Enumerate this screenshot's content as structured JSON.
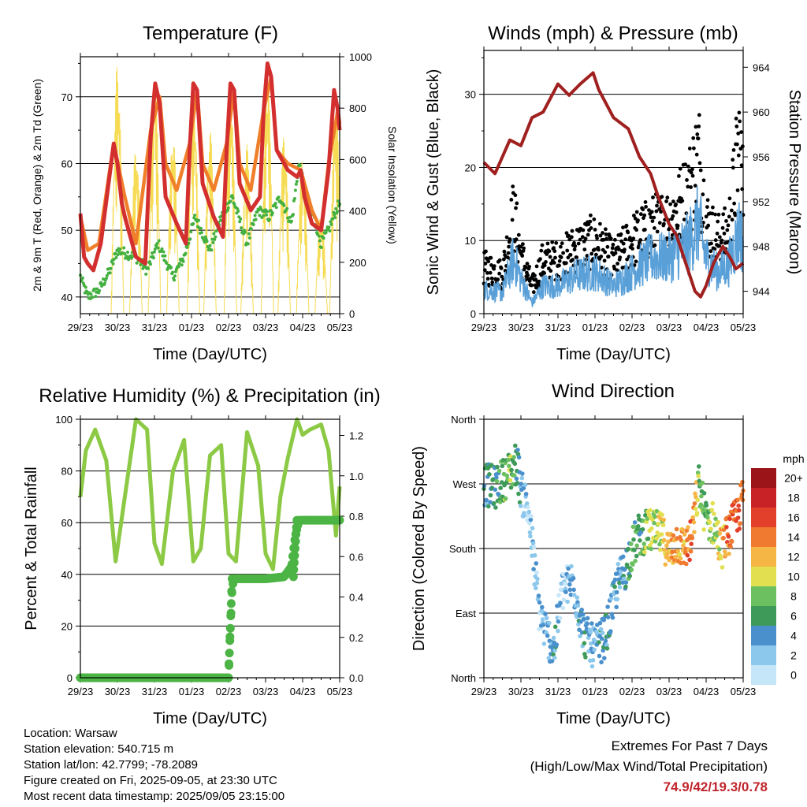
{
  "colors": {
    "temp_red": "#d32f2f",
    "temp_orange": "#f07f2a",
    "dewpoint_green": "#44b040",
    "solar_yellow": "#f6dc55",
    "wind_blue": "#5aa0d8",
    "gust_black": "#000000",
    "pressure_maroon": "#a02020",
    "rh_lightgreen": "#8cca46",
    "precip_green": "#4cb444",
    "extremes_red": "#c0242c"
  },
  "x_ticks": [
    "29/23",
    "30/23",
    "31/23",
    "01/23",
    "02/23",
    "03/23",
    "04/23",
    "05/23"
  ],
  "chart_data": [
    {
      "type": "line",
      "title": "Temperature (F)",
      "xlabel": "Time (Day/UTC)",
      "ylabel": "2m & 9m T (Red, Orange) & 2m Td (Green)",
      "ylabel_right": "Solar Insolation (Yellow)",
      "ylim": [
        37.5,
        76
      ],
      "yticks": [
        "40",
        "50",
        "60",
        "70"
      ],
      "ylim_right": [
        0,
        1000
      ],
      "yticks_right": [
        "0",
        "200",
        "400",
        "600",
        "800",
        "1000"
      ],
      "x_days": [
        0,
        1,
        2,
        3,
        4,
        5,
        6,
        7
      ],
      "series": [
        {
          "key": "temp_2m",
          "color": "temp_red",
          "x": [
            0,
            0.1,
            0.2,
            0.35,
            0.55,
            0.9,
            1.0,
            1.12,
            1.2,
            1.5,
            1.75,
            1.9,
            2.02,
            2.14,
            2.3,
            2.6,
            2.85,
            2.95,
            3.05,
            3.15,
            3.3,
            3.6,
            3.85,
            3.95,
            4.05,
            4.15,
            4.3,
            4.6,
            4.85,
            4.95,
            5.05,
            5.15,
            5.3,
            5.6,
            5.85,
            5.95,
            6.05,
            6.25,
            6.5,
            6.7,
            6.85,
            6.95,
            7.0
          ],
          "y": [
            52.5,
            46,
            45,
            44,
            48,
            63,
            60,
            54,
            52,
            46,
            45,
            64,
            72,
            69,
            55,
            51,
            48,
            62,
            72,
            71,
            57,
            52,
            49,
            62,
            72,
            71,
            57,
            53,
            55,
            68,
            75,
            73,
            62,
            59,
            58,
            59,
            55,
            51,
            50,
            59,
            71,
            68,
            65
          ]
        },
        {
          "key": "temp_9m",
          "color": "temp_orange",
          "x": [
            0,
            0.2,
            0.5,
            0.9,
            1.2,
            1.5,
            1.9,
            2.14,
            2.3,
            2.6,
            2.95,
            3.15,
            3.3,
            3.6,
            3.95,
            4.15,
            4.3,
            4.6,
            4.95,
            5.15,
            5.3,
            5.6,
            5.95,
            6.05,
            6.25,
            6.5,
            6.7,
            6.95,
            7.0
          ],
          "y": [
            52,
            47,
            48,
            63,
            55,
            48,
            65,
            70,
            60,
            56,
            63,
            71,
            60,
            56,
            63,
            71,
            60,
            56,
            68,
            73,
            62,
            60,
            59,
            57,
            53,
            50,
            60,
            68,
            66
          ]
        },
        {
          "key": "dewpoint_2m",
          "color": "dewpoint_green",
          "x": [
            0,
            0.2,
            0.5,
            0.8,
            1.0,
            1.5,
            1.8,
            2.1,
            2.5,
            2.8,
            3.1,
            3.5,
            3.8,
            4.1,
            4.5,
            4.8,
            5.1,
            5.4,
            5.7,
            5.9,
            6.1,
            6.3,
            6.5,
            6.7,
            6.9,
            7.0
          ],
          "y": [
            43,
            40,
            41,
            44,
            47,
            46,
            44,
            48,
            43,
            46,
            52,
            47,
            52,
            55,
            48,
            53,
            52,
            55,
            51,
            60,
            55,
            52,
            48,
            50,
            53,
            54
          ]
        },
        {
          "key": "solar",
          "color": "solar_yellow",
          "axis": "right",
          "peaks_x": [
            1.0,
            1.5,
            2.0,
            2.5,
            3.05,
            3.5,
            4.05,
            4.5,
            5.05,
            5.5,
            6.0,
            6.5,
            6.9
          ],
          "peaks_y": [
            980,
            650,
            960,
            700,
            910,
            720,
            880,
            660,
            930,
            700,
            620,
            400,
            830
          ]
        }
      ]
    },
    {
      "type": "scatter",
      "title": "Winds (mph) & Pressure (mb)",
      "xlabel": "Time (Day/UTC)",
      "ylabel": "Sonic Wind & Gust (Blue, Black)",
      "ylabel_right": "Station Pressure (Maroon)",
      "ylim": [
        0,
        36
      ],
      "yticks": [
        "0",
        "10",
        "20",
        "30"
      ],
      "ylim_right": [
        942,
        965.5
      ],
      "yticks_right": [
        "944",
        "948",
        "952",
        "956",
        "960",
        "964"
      ],
      "series": [
        {
          "key": "wind",
          "color": "wind_blue",
          "x": [
            0,
            0.5,
            0.8,
            1.0,
            1.3,
            1.6,
            2.0,
            2.5,
            3.0,
            3.5,
            4.0,
            4.5,
            5.0,
            5.5,
            5.8,
            6.0,
            6.3,
            6.6,
            6.9,
            7.0
          ],
          "y": [
            3.5,
            3,
            8,
            5,
            1.5,
            4,
            4,
            5.5,
            6,
            4,
            6,
            8,
            8,
            10,
            13,
            8,
            6,
            7,
            12,
            10
          ]
        },
        {
          "key": "gust",
          "color": "gust_black",
          "x": [
            0,
            0.5,
            0.8,
            1.0,
            1.3,
            1.6,
            2.0,
            2.5,
            3.0,
            3.5,
            4.0,
            4.5,
            5.0,
            5.5,
            5.8,
            6.0,
            6.3,
            6.6,
            6.9,
            7.0
          ],
          "y": [
            7,
            6,
            15,
            9,
            4,
            8,
            8,
            10,
            11,
            8,
            11,
            13,
            14,
            18,
            24,
            14,
            11,
            12,
            26,
            18
          ]
        },
        {
          "key": "pressure",
          "color": "pressure_maroon",
          "axis": "right",
          "x": [
            0,
            0.3,
            0.7,
            1.0,
            1.3,
            1.6,
            2.0,
            2.3,
            2.6,
            2.95,
            3.1,
            3.5,
            3.9,
            4.2,
            4.5,
            4.7,
            5.0,
            5.2,
            5.5,
            5.7,
            5.85,
            6.0,
            6.2,
            6.45,
            6.65,
            6.8,
            7.0
          ],
          "y": [
            955.5,
            954.5,
            957.5,
            957,
            959.5,
            960,
            962.5,
            961.5,
            962.5,
            963.5,
            962,
            959.5,
            958.5,
            956,
            954.5,
            952.5,
            950,
            949,
            946,
            944,
            943.5,
            944.5,
            946.5,
            948,
            947,
            946,
            946.5
          ]
        }
      ]
    },
    {
      "type": "line",
      "title": "Relative Humidity (%) & Precipitation (in)",
      "xlabel": "Time (Day/UTC)",
      "ylabel": "Percent & Total Rainfall",
      "ylim": [
        0,
        100
      ],
      "yticks": [
        "0",
        "20",
        "40",
        "60",
        "80",
        "100"
      ],
      "ylim_right": [
        0,
        1.28
      ],
      "yticks_right": [
        "0.0",
        "0.2",
        "0.4",
        "0.6",
        "0.8",
        "1.0",
        "1.2"
      ],
      "series": [
        {
          "key": "rh",
          "color": "rh_lightgreen",
          "x": [
            0,
            0.15,
            0.4,
            0.7,
            0.95,
            1.2,
            1.5,
            1.8,
            2.0,
            2.2,
            2.5,
            2.8,
            3.05,
            3.25,
            3.5,
            3.8,
            4.0,
            4.2,
            4.5,
            4.8,
            5.0,
            5.2,
            5.4,
            5.6,
            5.85,
            6.0,
            6.2,
            6.5,
            6.7,
            6.9,
            7.0
          ],
          "y": [
            70,
            88,
            96,
            84,
            45,
            70,
            100,
            96,
            52,
            44,
            80,
            92,
            45,
            50,
            86,
            90,
            48,
            45,
            95,
            82,
            48,
            42,
            70,
            85,
            100,
            94,
            96,
            98,
            88,
            55,
            74
          ]
        },
        {
          "key": "precip",
          "color": "precip_green",
          "axis": "right",
          "x": [
            0,
            4.0,
            4.02,
            4.06,
            4.1,
            4.15,
            5.0,
            5.5,
            5.7,
            5.8,
            5.9,
            6.5,
            7.0
          ],
          "y": [
            0,
            0,
            0.12,
            0.3,
            0.45,
            0.49,
            0.49,
            0.5,
            0.55,
            0.7,
            0.78,
            0.78,
            0.78
          ]
        }
      ]
    },
    {
      "type": "scatter",
      "title": "Wind Direction",
      "xlabel": "Time (Day/UTC)",
      "ylabel": "Direction (Colored By Speed)",
      "ylim": [
        0,
        360
      ],
      "yticks": [
        "North",
        "East",
        "South",
        "West",
        "North"
      ],
      "colorbar_title": "mph",
      "colorbar_labels": [
        "0",
        "2",
        "4",
        "6",
        "8",
        "10",
        "12",
        "14",
        "16",
        "18",
        "20+"
      ],
      "colorbar_colors": [
        "#c5e6f8",
        "#8cc8ec",
        "#4a90cc",
        "#3e9a58",
        "#6cc060",
        "#e2e050",
        "#f6b646",
        "#f07a30",
        "#e2402a",
        "#c82226",
        "#9a1418"
      ],
      "series": [
        {
          "key": "direction",
          "x": [
            0,
            0.3,
            0.6,
            0.9,
            1.0,
            1.2,
            1.5,
            1.7,
            1.9,
            2.1,
            2.4,
            2.7,
            3.0,
            3.3,
            3.6,
            3.8,
            4.0,
            4.2,
            4.5,
            4.8,
            5.0,
            5.2,
            5.4,
            5.6,
            5.8,
            6.0,
            6.2,
            6.4,
            6.6,
            6.8,
            7.0
          ],
          "y": [
            270,
            265,
            280,
            300,
            260,
            235,
            90,
            60,
            40,
            120,
            135,
            60,
            40,
            60,
            130,
            150,
            180,
            200,
            205,
            200,
            175,
            190,
            180,
            190,
            270,
            220,
            215,
            180,
            200,
            220,
            250
          ],
          "speed": [
            5,
            6,
            9,
            7,
            4,
            3,
            3,
            4,
            5,
            3,
            4,
            5,
            4,
            6,
            4,
            5,
            8,
            7,
            10,
            11,
            12,
            14,
            13,
            16,
            9,
            8,
            10,
            12,
            15,
            17,
            14
          ]
        }
      ]
    }
  ],
  "info": {
    "location": "Location: Warsaw",
    "elevation": "Station elevation: 540.715 m",
    "latlon": "Station lat/lon: 42.7799; -78.2089",
    "created": "Figure created on Fri, 2025-09-05, at 23:30 UTC",
    "recent": "Most recent data timestamp: 2025/09/05 23:15:00"
  },
  "extremes": {
    "line1": "Extremes For Past 7 Days",
    "line2": "(High/Low/Max Wind/Total Precipitation)",
    "values": "74.9/42/19.3/0.78"
  }
}
